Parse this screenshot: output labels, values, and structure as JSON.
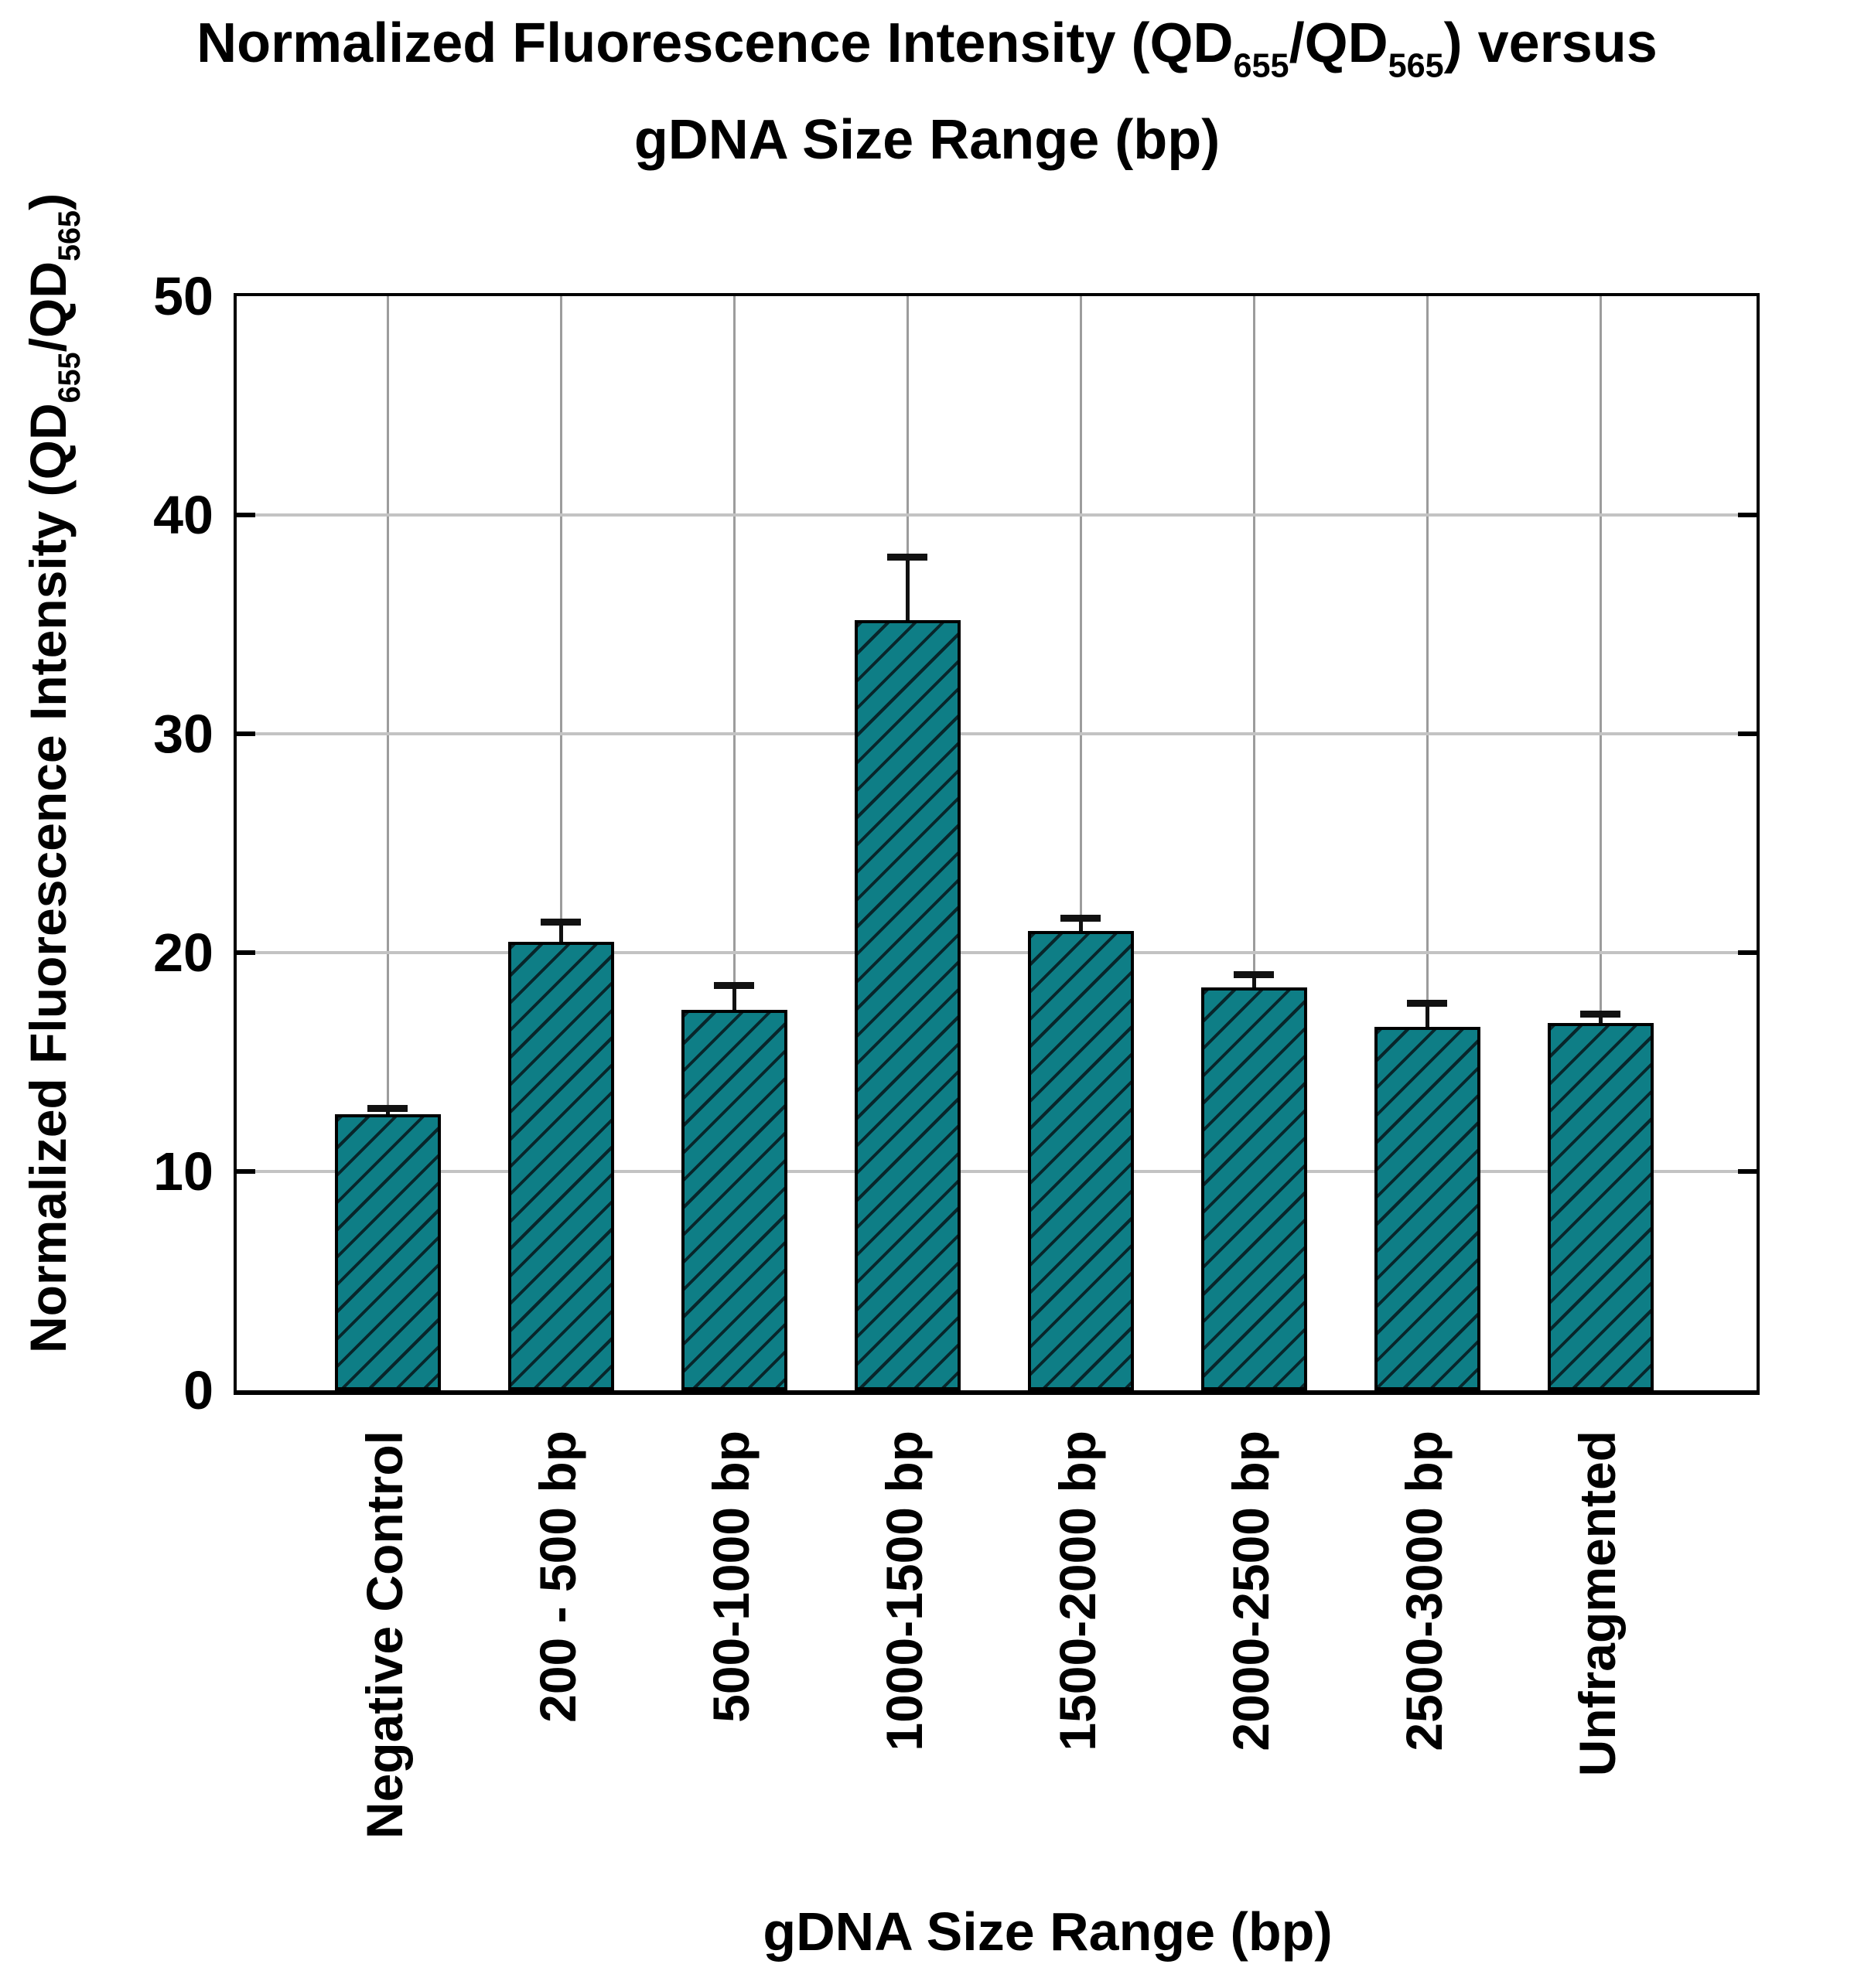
{
  "title": {
    "line1_segments": [
      {
        "t": "Normalized Fluorescence Intensity (QD"
      },
      {
        "t": "655",
        "sub": true
      },
      {
        "t": "/QD"
      },
      {
        "t": "565",
        "sub": true
      },
      {
        "t": ") versus"
      }
    ],
    "line2": "gDNA Size Range (bp)"
  },
  "y_axis": {
    "label_segments": [
      {
        "t": "Normalized Fluorescence Intensity (QD"
      },
      {
        "t": "655",
        "sub": true
      },
      {
        "t": "/QD"
      },
      {
        "t": "565",
        "sub": true
      },
      {
        "t": ")"
      }
    ],
    "tick_labels": [
      "0",
      "10",
      "20",
      "30",
      "40",
      "50"
    ]
  },
  "chart_data": {
    "type": "bar",
    "title": "Normalized Fluorescence Intensity (QD655/QD565) versus gDNA Size Range (bp)",
    "xlabel": "gDNA Size Range (bp)",
    "ylabel": "Normalized Fluorescence Intensity (QD655/QD565)",
    "categories": [
      "Negative Control",
      "200 - 500 bp",
      "500-1000 bp",
      "1000-1500 bp",
      "1500-2000 bp",
      "2000-2500 bp",
      "2500-3000 bp",
      "Unfragmented"
    ],
    "values": [
      12.6,
      20.5,
      17.4,
      35.2,
      21.0,
      18.4,
      16.6,
      16.8
    ],
    "errors_upper": [
      0.3,
      0.9,
      1.1,
      2.9,
      0.6,
      0.6,
      1.1,
      0.4
    ],
    "ylim": [
      0,
      50
    ],
    "yticks": [
      0,
      10,
      20,
      30,
      40,
      50
    ],
    "grid": {
      "horizontal": [
        10,
        20,
        30,
        40
      ],
      "vertical": "category-centers"
    },
    "legend": "none",
    "hatch": "/",
    "colors": {
      "bar_fill": "#0E7E86",
      "hatch_line": "#08262B",
      "bar_edge": "#000000",
      "error_bar": "#111111",
      "h_gridline": "#C3C3C3",
      "v_gridline": "#9C9C9C",
      "frame": "#000000",
      "text": "#000000",
      "background": "#FFFFFF"
    }
  }
}
